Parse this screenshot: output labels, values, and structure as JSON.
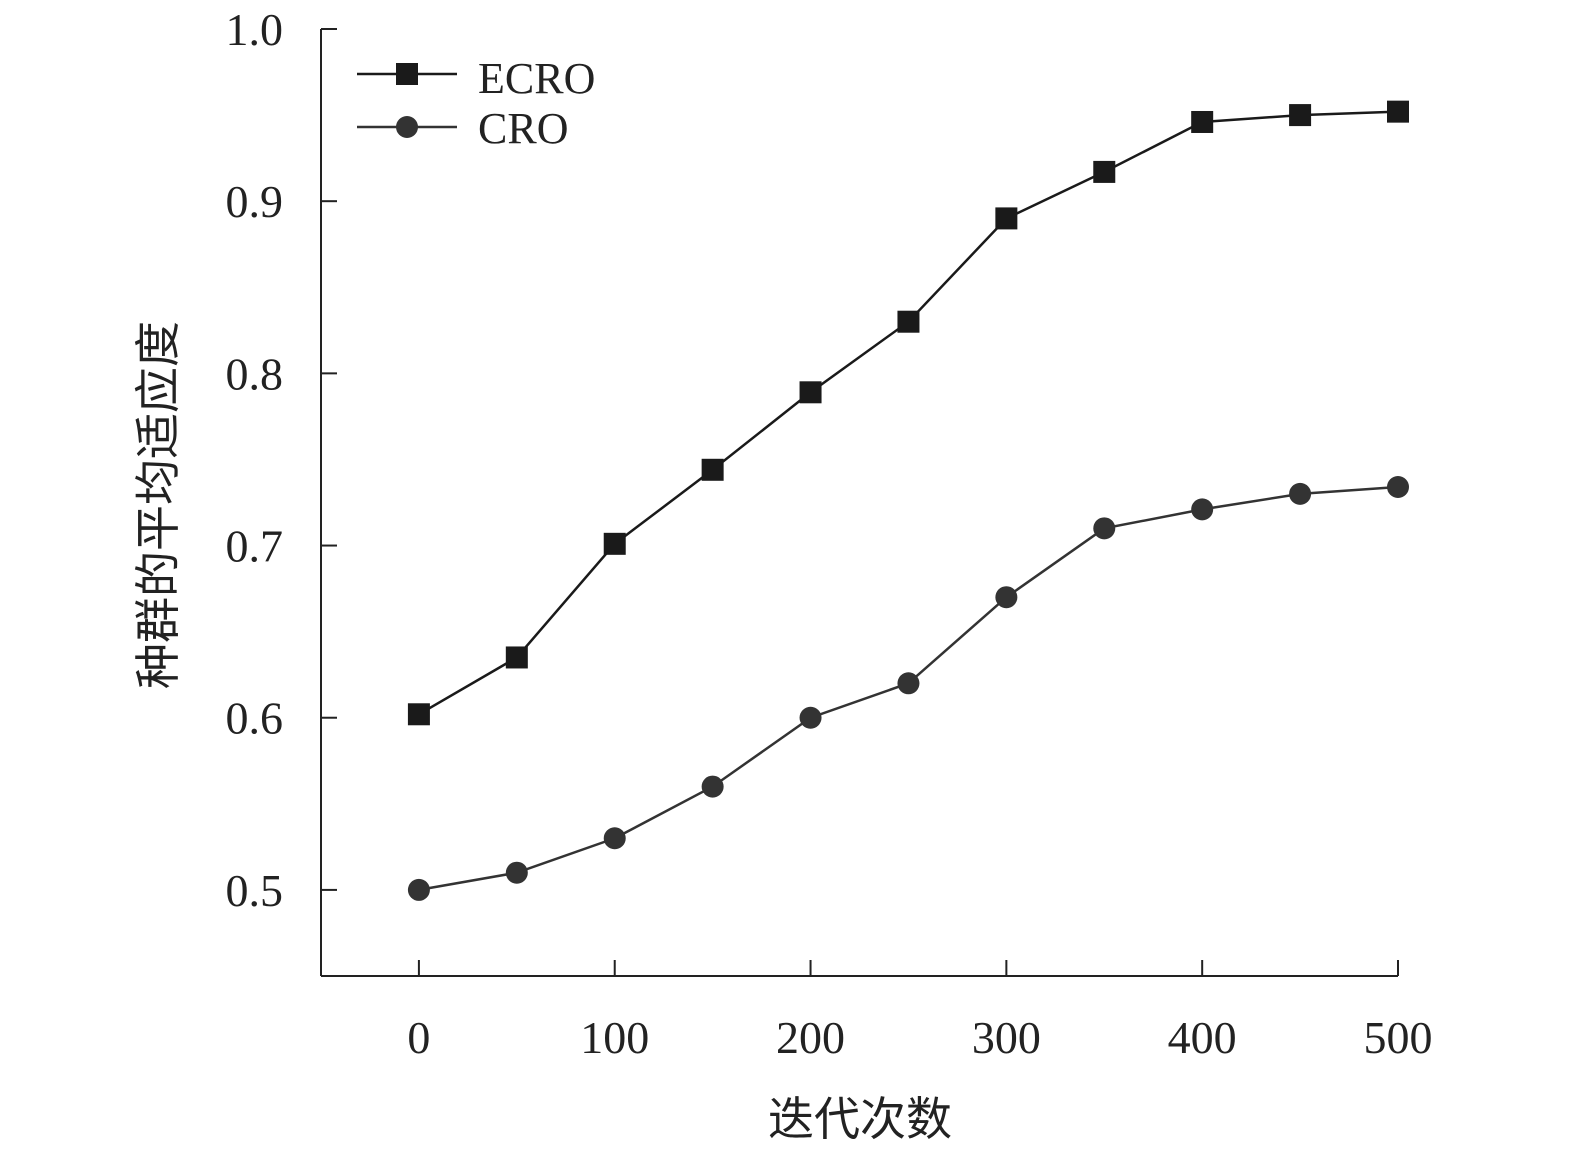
{
  "chart_data": {
    "type": "line",
    "title": "",
    "xlabel": "迭代次数",
    "ylabel": "种群的平均适应度",
    "xlim": [
      -50,
      500
    ],
    "ylim": [
      0.45,
      1.0
    ],
    "x_ticks": [
      0,
      100,
      200,
      300,
      400,
      500
    ],
    "x_tick_labels": [
      "0",
      "100",
      "200",
      "300",
      "400",
      "500"
    ],
    "y_ticks": [
      0.5,
      0.6,
      0.7,
      0.8,
      0.9,
      1.0
    ],
    "y_tick_labels": [
      "0.5",
      "0.6",
      "0.7",
      "0.8",
      "0.9",
      "1.0"
    ],
    "grid": false,
    "legend_position": "top-left",
    "x": [
      0,
      50,
      100,
      150,
      200,
      250,
      300,
      350,
      400,
      450,
      500
    ],
    "series": [
      {
        "name": "ECRO",
        "marker": "square",
        "color": "#1a1a1a",
        "values": [
          0.602,
          0.635,
          0.701,
          0.744,
          0.789,
          0.83,
          0.89,
          0.917,
          0.946,
          0.95,
          0.952
        ]
      },
      {
        "name": "CRO",
        "marker": "circle",
        "color": "#333333",
        "values": [
          0.5,
          0.51,
          0.53,
          0.56,
          0.6,
          0.62,
          0.67,
          0.71,
          0.721,
          0.73,
          0.734
        ]
      }
    ]
  }
}
